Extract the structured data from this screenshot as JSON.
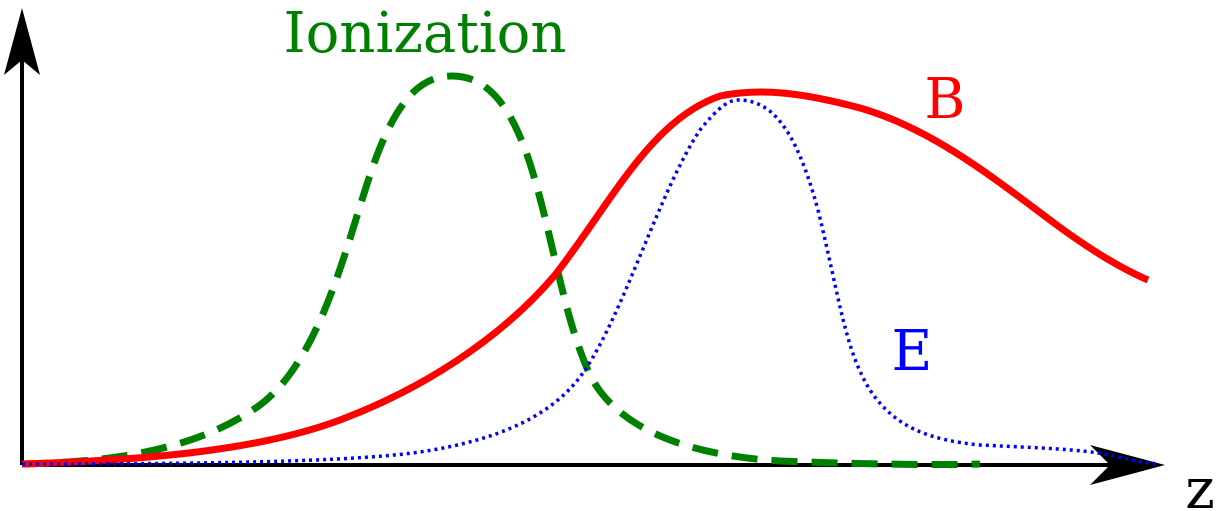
{
  "labels": {
    "ionization": "Ionization",
    "b_field": "B",
    "e_field": "E",
    "z_axis": "z"
  },
  "colors": {
    "ionization": "#008000",
    "b_field": "#ff0000",
    "e_field": "#0000ff",
    "axes": "#000000"
  },
  "line_styles": {
    "ionization": "dashed",
    "b_field": "solid",
    "e_field": "dotted"
  }
}
